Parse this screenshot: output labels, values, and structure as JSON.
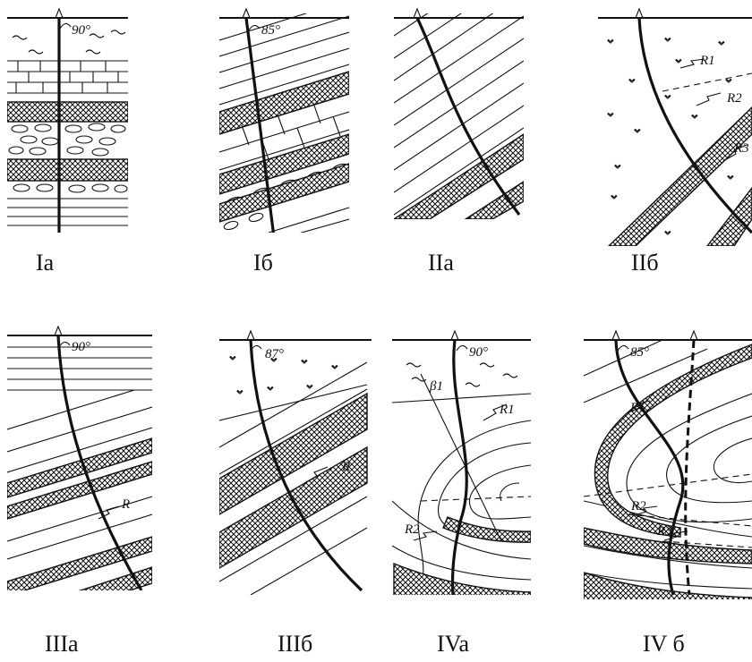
{
  "panels": [
    {
      "id": "Ia",
      "caption": "Ia",
      "angle": "90°"
    },
    {
      "id": "Ib",
      "caption": "Iб",
      "angle": "85°"
    },
    {
      "id": "IIa",
      "caption": "IIa",
      "angle": ""
    },
    {
      "id": "IIb",
      "caption": "IIб",
      "angle": "",
      "reflectors": [
        "R1",
        "R2",
        "R3"
      ]
    },
    {
      "id": "IIIa",
      "caption": "IIIa",
      "angle": "90°",
      "reflectors": [
        "R"
      ]
    },
    {
      "id": "IIIb",
      "caption": "IIIб",
      "angle": "87°",
      "reflectors": [
        "R"
      ]
    },
    {
      "id": "IVa",
      "caption": "IVa",
      "angle": "90°",
      "reflectors": [
        "R1",
        "R2"
      ],
      "dip_symbol": "β1"
    },
    {
      "id": "IVb",
      "caption": "IV б",
      "angle": "85°",
      "reflectors": [
        "R1",
        "R2",
        "R3"
      ]
    }
  ]
}
